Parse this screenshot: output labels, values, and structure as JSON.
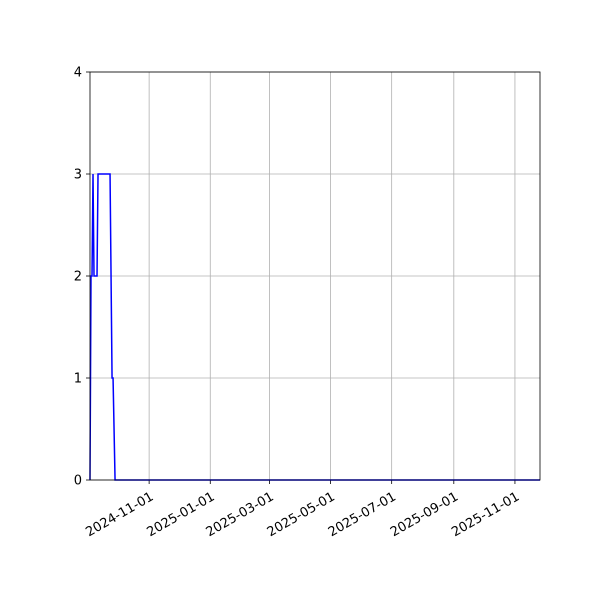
{
  "chart_data": {
    "type": "line",
    "title": "",
    "xlabel": "",
    "ylabel": "",
    "xlim": [
      "2024-09-03",
      "2025-11-26"
    ],
    "ylim": [
      0,
      4
    ],
    "grid": true,
    "yticks": [
      0,
      1,
      2,
      3,
      4
    ],
    "xticks": [
      "2024-11-01",
      "2025-01-01",
      "2025-03-01",
      "2025-05-01",
      "2025-07-01",
      "2025-09-01",
      "2025-11-01"
    ],
    "series": [
      {
        "color": "#0000ff",
        "points": [
          [
            "2024-09-03",
            0
          ],
          [
            "2024-09-04",
            2
          ],
          [
            "2024-09-05",
            2
          ],
          [
            "2024-09-06",
            3
          ],
          [
            "2024-09-07",
            2
          ],
          [
            "2024-09-10",
            2
          ],
          [
            "2024-09-11",
            3
          ],
          [
            "2024-09-23",
            3
          ],
          [
            "2024-09-25",
            1
          ],
          [
            "2024-09-26",
            1
          ],
          [
            "2024-09-28",
            0
          ],
          [
            "2025-11-26",
            0
          ]
        ]
      }
    ]
  }
}
